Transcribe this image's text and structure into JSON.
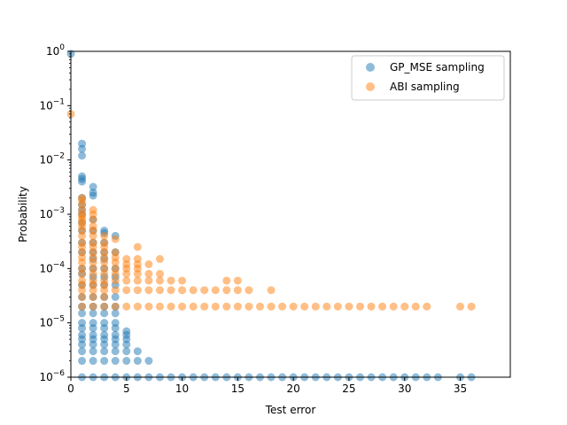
{
  "chart_data": {
    "type": "scatter",
    "xlabel": "Test error",
    "ylabel": "Probability",
    "xlim": [
      0,
      39.5
    ],
    "ylim": [
      1e-06,
      1
    ],
    "yscale": "log",
    "x_ticks": [
      0,
      5,
      10,
      15,
      20,
      25,
      30,
      35
    ],
    "x_tick_labels": [
      "0",
      "5",
      "10",
      "15",
      "20",
      "25",
      "30",
      "35"
    ],
    "y_ticks": [
      1e-06,
      1e-05,
      0.0001,
      0.001,
      0.01,
      0.1,
      1
    ],
    "y_tick_bases": [
      "10",
      "10",
      "10",
      "10",
      "10",
      "10",
      "10"
    ],
    "y_tick_exponents": [
      "−6",
      "−5",
      "−4",
      "−3",
      "−2",
      "−1",
      "0"
    ],
    "grid": false,
    "legend_position": "upper-right",
    "series": [
      {
        "name": "GP_MSE sampling",
        "color": "#1f77b4",
        "points": [
          [
            0,
            0.9
          ],
          [
            1,
            0.02
          ],
          [
            1,
            0.016
          ],
          [
            1,
            0.012
          ],
          [
            1,
            0.005
          ],
          [
            1,
            0.0045
          ],
          [
            1,
            0.004
          ],
          [
            1,
            0.002
          ],
          [
            1,
            0.0015
          ],
          [
            1,
            0.0012
          ],
          [
            1,
            0.001
          ],
          [
            1,
            0.0007
          ],
          [
            1,
            0.0005
          ],
          [
            1,
            0.0003
          ],
          [
            1,
            0.0002
          ],
          [
            1,
            0.0001
          ],
          [
            1,
            8e-05
          ],
          [
            1,
            5e-05
          ],
          [
            1,
            3e-05
          ],
          [
            1,
            2e-05
          ],
          [
            1,
            1.5e-05
          ],
          [
            1,
            1e-05
          ],
          [
            1,
            8e-06
          ],
          [
            1,
            6e-06
          ],
          [
            1,
            5e-06
          ],
          [
            1,
            4e-06
          ],
          [
            1,
            3e-06
          ],
          [
            1,
            2e-06
          ],
          [
            1,
            1e-06
          ],
          [
            2,
            0.0032
          ],
          [
            2,
            0.0025
          ],
          [
            2,
            0.0022
          ],
          [
            2,
            0.0008
          ],
          [
            2,
            0.0005
          ],
          [
            2,
            0.0003
          ],
          [
            2,
            0.0002
          ],
          [
            2,
            0.00015
          ],
          [
            2,
            0.0001
          ],
          [
            2,
            7e-05
          ],
          [
            2,
            5e-05
          ],
          [
            2,
            3e-05
          ],
          [
            2,
            2e-05
          ],
          [
            2,
            1.5e-05
          ],
          [
            2,
            1e-05
          ],
          [
            2,
            8e-06
          ],
          [
            2,
            6e-06
          ],
          [
            2,
            5e-06
          ],
          [
            2,
            4e-06
          ],
          [
            2,
            3e-06
          ],
          [
            2,
            2e-06
          ],
          [
            2,
            1e-06
          ],
          [
            3,
            0.0005
          ],
          [
            3,
            0.00045
          ],
          [
            3,
            0.0003
          ],
          [
            3,
            0.0002
          ],
          [
            3,
            0.00015
          ],
          [
            3,
            0.0001
          ],
          [
            3,
            7e-05
          ],
          [
            3,
            5e-05
          ],
          [
            3,
            3e-05
          ],
          [
            3,
            2e-05
          ],
          [
            3,
            1.5e-05
          ],
          [
            3,
            1e-05
          ],
          [
            3,
            8e-06
          ],
          [
            3,
            6e-06
          ],
          [
            3,
            5e-06
          ],
          [
            3,
            4e-06
          ],
          [
            3,
            3e-06
          ],
          [
            3,
            2e-06
          ],
          [
            3,
            1e-06
          ],
          [
            4,
            0.0004
          ],
          [
            4,
            0.0002
          ],
          [
            4,
            0.0001
          ],
          [
            4,
            7e-05
          ],
          [
            4,
            5e-05
          ],
          [
            4,
            3e-05
          ],
          [
            4,
            2e-05
          ],
          [
            4,
            1.5e-05
          ],
          [
            4,
            1e-05
          ],
          [
            4,
            8e-06
          ],
          [
            4,
            6e-06
          ],
          [
            4,
            5e-06
          ],
          [
            4,
            4e-06
          ],
          [
            4,
            3e-06
          ],
          [
            4,
            2e-06
          ],
          [
            4,
            1e-06
          ],
          [
            5,
            7e-06
          ],
          [
            5,
            6e-06
          ],
          [
            5,
            5e-06
          ],
          [
            5,
            4e-06
          ],
          [
            5,
            3e-06
          ],
          [
            5,
            2e-06
          ],
          [
            5,
            1e-06
          ],
          [
            6,
            3e-06
          ],
          [
            6,
            2e-06
          ],
          [
            6,
            1e-06
          ],
          [
            7,
            2e-06
          ],
          [
            7,
            1e-06
          ],
          [
            8,
            1e-06
          ],
          [
            9,
            1e-06
          ],
          [
            10,
            1e-06
          ],
          [
            11,
            1e-06
          ],
          [
            12,
            1e-06
          ],
          [
            13,
            1e-06
          ],
          [
            14,
            1e-06
          ],
          [
            15,
            1e-06
          ],
          [
            16,
            1e-06
          ],
          [
            17,
            1e-06
          ],
          [
            18,
            1e-06
          ],
          [
            19,
            1e-06
          ],
          [
            20,
            1e-06
          ],
          [
            21,
            1e-06
          ],
          [
            22,
            1e-06
          ],
          [
            23,
            1e-06
          ],
          [
            24,
            1e-06
          ],
          [
            25,
            1e-06
          ],
          [
            26,
            1e-06
          ],
          [
            27,
            1e-06
          ],
          [
            28,
            1e-06
          ],
          [
            29,
            1e-06
          ],
          [
            30,
            1e-06
          ],
          [
            31,
            1e-06
          ],
          [
            32,
            1e-06
          ],
          [
            33,
            1e-06
          ],
          [
            35,
            1e-06
          ],
          [
            36,
            1e-06
          ]
        ]
      },
      {
        "name": "ABI sampling",
        "color": "#ff7f0e",
        "points": [
          [
            0,
            0.07
          ],
          [
            1,
            0.002
          ],
          [
            1,
            0.0018
          ],
          [
            1,
            0.0015
          ],
          [
            1,
            0.0012
          ],
          [
            1,
            0.001
          ],
          [
            1,
            0.0009
          ],
          [
            1,
            0.0008
          ],
          [
            1,
            0.0007
          ],
          [
            1,
            0.0006
          ],
          [
            1,
            0.0005
          ],
          [
            1,
            0.0004
          ],
          [
            1,
            0.0003
          ],
          [
            1,
            0.00025
          ],
          [
            1,
            0.0002
          ],
          [
            1,
            0.00016
          ],
          [
            1,
            0.00013
          ],
          [
            1,
            0.0001
          ],
          [
            1,
            8e-05
          ],
          [
            1,
            6e-05
          ],
          [
            1,
            5e-05
          ],
          [
            1,
            4e-05
          ],
          [
            1,
            3e-05
          ],
          [
            1,
            2e-05
          ],
          [
            2,
            0.0012
          ],
          [
            2,
            0.001
          ],
          [
            2,
            0.0008
          ],
          [
            2,
            0.0006
          ],
          [
            2,
            0.0005
          ],
          [
            2,
            0.0004
          ],
          [
            2,
            0.0003
          ],
          [
            2,
            0.00025
          ],
          [
            2,
            0.0002
          ],
          [
            2,
            0.00016
          ],
          [
            2,
            0.00013
          ],
          [
            2,
            0.0001
          ],
          [
            2,
            8e-05
          ],
          [
            2,
            6e-05
          ],
          [
            2,
            5e-05
          ],
          [
            2,
            4e-05
          ],
          [
            2,
            3e-05
          ],
          [
            2,
            2e-05
          ],
          [
            3,
            0.0004
          ],
          [
            3,
            0.0003
          ],
          [
            3,
            0.00025
          ],
          [
            3,
            0.0002
          ],
          [
            3,
            0.00016
          ],
          [
            3,
            0.00013
          ],
          [
            3,
            0.0001
          ],
          [
            3,
            8e-05
          ],
          [
            3,
            6e-05
          ],
          [
            3,
            5e-05
          ],
          [
            3,
            4e-05
          ],
          [
            3,
            3e-05
          ],
          [
            3,
            2e-05
          ],
          [
            4,
            0.00035
          ],
          [
            4,
            0.0002
          ],
          [
            4,
            0.00016
          ],
          [
            4,
            0.00013
          ],
          [
            4,
            0.0001
          ],
          [
            4,
            8e-05
          ],
          [
            4,
            6e-05
          ],
          [
            4,
            4e-05
          ],
          [
            4,
            2e-05
          ],
          [
            5,
            0.00015
          ],
          [
            5,
            0.00012
          ],
          [
            5,
            0.0001
          ],
          [
            5,
            8e-05
          ],
          [
            5,
            6e-05
          ],
          [
            5,
            4e-05
          ],
          [
            5,
            2e-05
          ],
          [
            6,
            0.00025
          ],
          [
            6,
            0.00015
          ],
          [
            6,
            0.00012
          ],
          [
            6,
            0.0001
          ],
          [
            6,
            8e-05
          ],
          [
            6,
            6e-05
          ],
          [
            6,
            4e-05
          ],
          [
            6,
            2e-05
          ],
          [
            7,
            0.00012
          ],
          [
            7,
            8e-05
          ],
          [
            7,
            6e-05
          ],
          [
            7,
            4e-05
          ],
          [
            7,
            2e-05
          ],
          [
            8,
            0.00015
          ],
          [
            8,
            8e-05
          ],
          [
            8,
            6e-05
          ],
          [
            8,
            4e-05
          ],
          [
            8,
            2e-05
          ],
          [
            9,
            6e-05
          ],
          [
            9,
            4e-05
          ],
          [
            9,
            2e-05
          ],
          [
            10,
            6e-05
          ],
          [
            10,
            4e-05
          ],
          [
            10,
            2e-05
          ],
          [
            11,
            4e-05
          ],
          [
            11,
            2e-05
          ],
          [
            12,
            4e-05
          ],
          [
            12,
            2e-05
          ],
          [
            13,
            4e-05
          ],
          [
            13,
            2e-05
          ],
          [
            14,
            6e-05
          ],
          [
            14,
            4e-05
          ],
          [
            14,
            2e-05
          ],
          [
            15,
            6e-05
          ],
          [
            15,
            4e-05
          ],
          [
            15,
            2e-05
          ],
          [
            16,
            4e-05
          ],
          [
            16,
            2e-05
          ],
          [
            17,
            2e-05
          ],
          [
            18,
            4e-05
          ],
          [
            18,
            2e-05
          ],
          [
            19,
            2e-05
          ],
          [
            20,
            2e-05
          ],
          [
            21,
            2e-05
          ],
          [
            22,
            2e-05
          ],
          [
            23,
            2e-05
          ],
          [
            24,
            2e-05
          ],
          [
            25,
            2e-05
          ],
          [
            26,
            2e-05
          ],
          [
            27,
            2e-05
          ],
          [
            28,
            2e-05
          ],
          [
            29,
            2e-05
          ],
          [
            30,
            2e-05
          ],
          [
            31,
            2e-05
          ],
          [
            32,
            2e-05
          ],
          [
            35,
            2e-05
          ],
          [
            36,
            2e-05
          ]
        ]
      }
    ]
  }
}
